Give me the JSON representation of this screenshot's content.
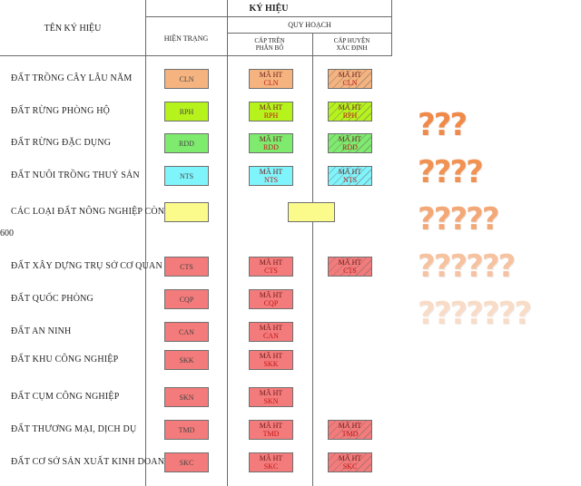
{
  "header": {
    "col_name": "TÊN KÝ HIỆU",
    "symbol": "KÝ HIỆU",
    "current": "HIỆN TRẠNG",
    "planning": "QUY HOẠCH",
    "upper_line1": "CẤP TRÊN",
    "upper_line2": "PHÂN BỔ",
    "district_line1": "CẤP HUYỆN",
    "district_line2": "XÁC ĐỊNH"
  },
  "side_number": "600",
  "rows": [
    {
      "name": "ĐẤT TRỒNG CÂY LÂU NĂM",
      "code": "CLN",
      "upper": "MÃ HT",
      "district": "MÃ HT",
      "color": "#f5b47f"
    },
    {
      "name": "ĐẤT RỪNG PHÒNG HỘ",
      "code": "RPH",
      "upper": "MÃ HT",
      "district": "MÃ HT",
      "color": "#b6f21c"
    },
    {
      "name": "ĐẤT RỪNG ĐẶC DỤNG",
      "code": "RDD",
      "upper": "MÃ HT",
      "district": "MÃ HT",
      "color": "#7eea6e"
    },
    {
      "name": "ĐẤT NUÔI TRỒNG THUỶ SẢN",
      "code": "NTS",
      "upper": "MÃ HT",
      "district": "MÃ HT",
      "color": "#80f4fb"
    },
    {
      "name": "CÁC LOẠI ĐẤT NÔNG NGHIỆP CÒN LẠI *",
      "code": "",
      "upper": "",
      "district": "",
      "color": "#fbfb8c"
    },
    {
      "name": "ĐẤT XÂY DỰNG TRỤ SỞ CƠ QUAN",
      "code": "CTS",
      "upper": "MÃ HT",
      "district": "MÃ HT",
      "color": "#f47b7b"
    },
    {
      "name": "ĐẤT QUỐC PHÒNG",
      "code": "CQP",
      "upper": "MÃ HT",
      "district": "",
      "color": "#f47b7b"
    },
    {
      "name": "ĐẤT AN NINH",
      "code": "CAN",
      "upper": "MÃ HT",
      "district": "",
      "color": "#f47b7b"
    },
    {
      "name": "ĐẤT KHU CÔNG NGHIỆP",
      "code": "SKK",
      "upper": "MÃ HT",
      "district": "",
      "color": "#f47b7b"
    },
    {
      "name": "ĐẤT CỤM CÔNG NGHIỆP",
      "code": "SKN",
      "upper": "MÃ HT",
      "district": "",
      "color": "#f47b7b"
    },
    {
      "name": "ĐẤT THƯƠNG MẠI, DỊCH DỤ",
      "code": "TMD",
      "upper": "MÃ HT",
      "district": "MÃ HT",
      "color": "#f47b7b"
    },
    {
      "name": "ĐẤT CƠ SỞ SẢN XUẤT KINH DOANH",
      "code": "SKC",
      "upper": "MÃ HT",
      "district": "MÃ HT",
      "color": "#f47b7b"
    }
  ],
  "question_marks": [
    {
      "text": "???",
      "color": "#ef8a4a"
    },
    {
      "text": "????",
      "color": "#f19253"
    },
    {
      "text": "?????",
      "color": "#f3a878"
    },
    {
      "text": "??????",
      "color": "#f6c2a0"
    },
    {
      "text": "???????",
      "color": "#f9dcc7"
    }
  ]
}
